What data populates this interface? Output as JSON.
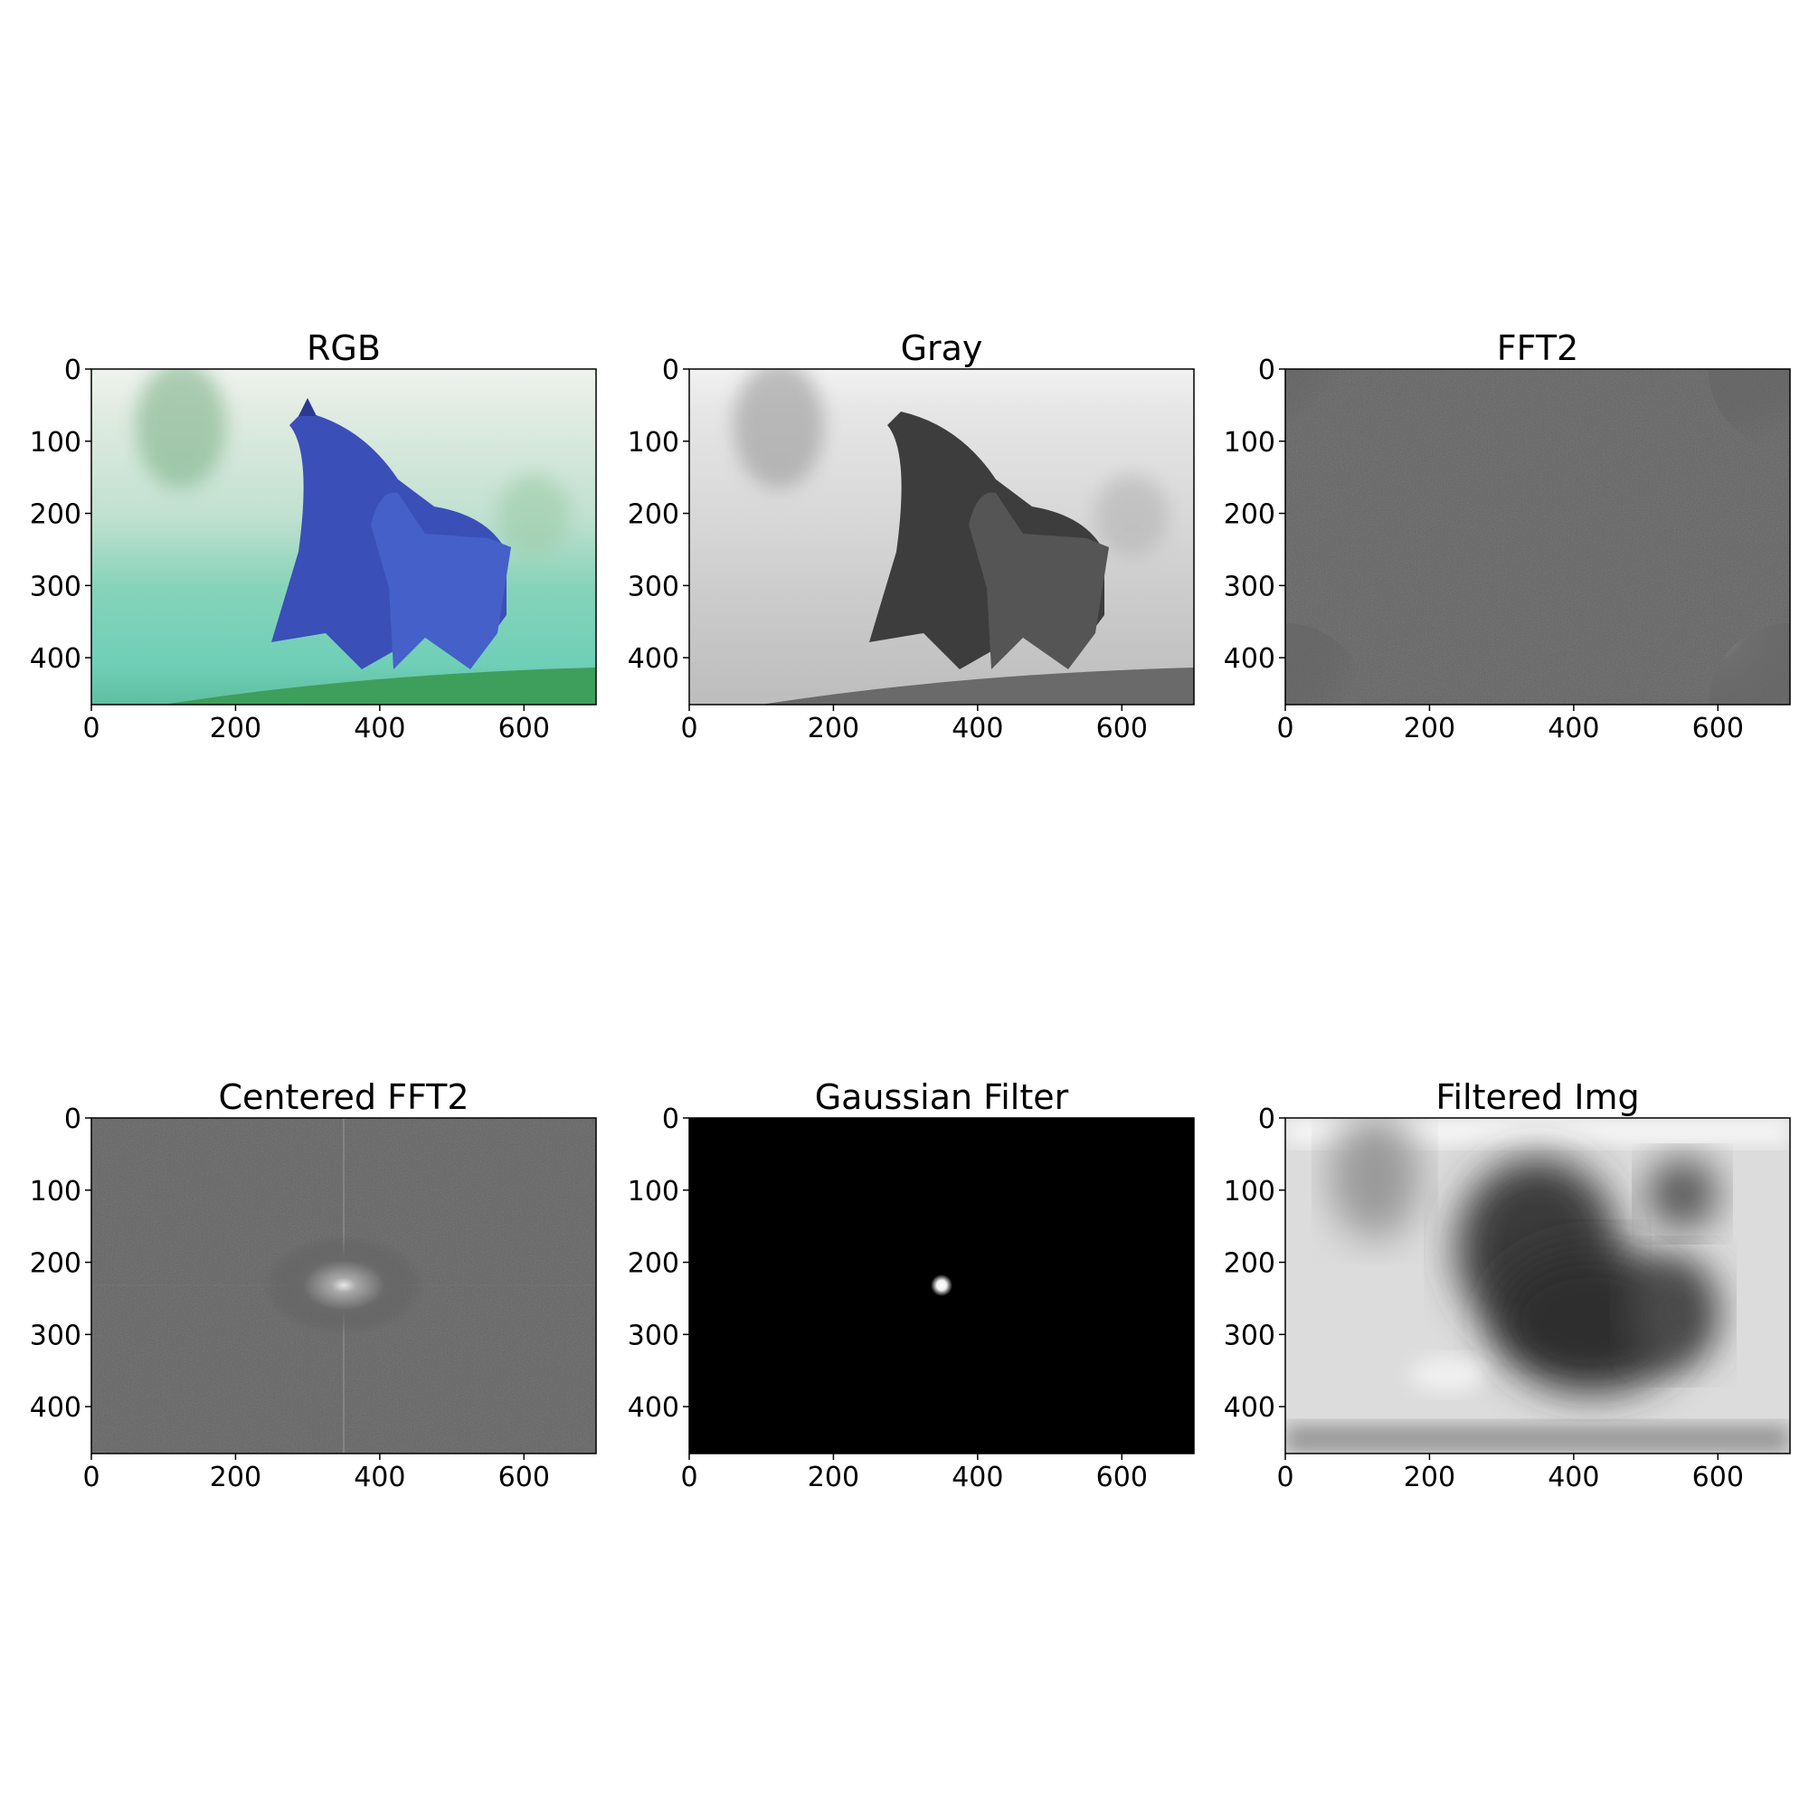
{
  "chart_data": [
    {
      "type": "image",
      "title": "RGB",
      "content": "blue-tinted color photograph of two running horses",
      "xlim": [
        0,
        700
      ],
      "ylim": [
        465,
        0
      ],
      "xticks": [
        0,
        200,
        400,
        600
      ],
      "yticks": [
        0,
        100,
        200,
        300,
        400
      ]
    },
    {
      "type": "image",
      "title": "Gray",
      "content": "grayscale photograph of two running horses",
      "xlim": [
        0,
        700
      ],
      "ylim": [
        465,
        0
      ],
      "xticks": [
        0,
        200,
        400,
        600
      ],
      "yticks": [
        0,
        100,
        200,
        300,
        400
      ]
    },
    {
      "type": "heatmap",
      "title": "FFT2",
      "content": "log-magnitude spectrum, bright at the four corners",
      "xlim": [
        0,
        700
      ],
      "ylim": [
        465,
        0
      ],
      "xticks": [
        0,
        200,
        400,
        600
      ],
      "yticks": [
        0,
        100,
        200,
        300,
        400
      ]
    },
    {
      "type": "heatmap",
      "title": "Centered FFT2",
      "content": "shifted log-magnitude spectrum, bright peak at center",
      "peak": [
        350,
        232
      ],
      "xlim": [
        0,
        700
      ],
      "ylim": [
        465,
        0
      ],
      "xticks": [
        0,
        200,
        400,
        600
      ],
      "yticks": [
        0,
        100,
        200,
        300,
        400
      ]
    },
    {
      "type": "heatmap",
      "title": "Gaussian Filter",
      "content": "black field with a small white gaussian spot at center",
      "peak": [
        350,
        232
      ],
      "xlim": [
        0,
        700
      ],
      "ylim": [
        465,
        0
      ],
      "xticks": [
        0,
        200,
        400,
        600
      ],
      "yticks": [
        0,
        100,
        200,
        300,
        400
      ]
    },
    {
      "type": "image",
      "title": "Filtered Img",
      "content": "heavily blurred grayscale image of the horses",
      "xlim": [
        0,
        700
      ],
      "ylim": [
        465,
        0
      ],
      "xticks": [
        0,
        200,
        400,
        600
      ],
      "yticks": [
        0,
        100,
        200,
        300,
        400
      ]
    }
  ]
}
